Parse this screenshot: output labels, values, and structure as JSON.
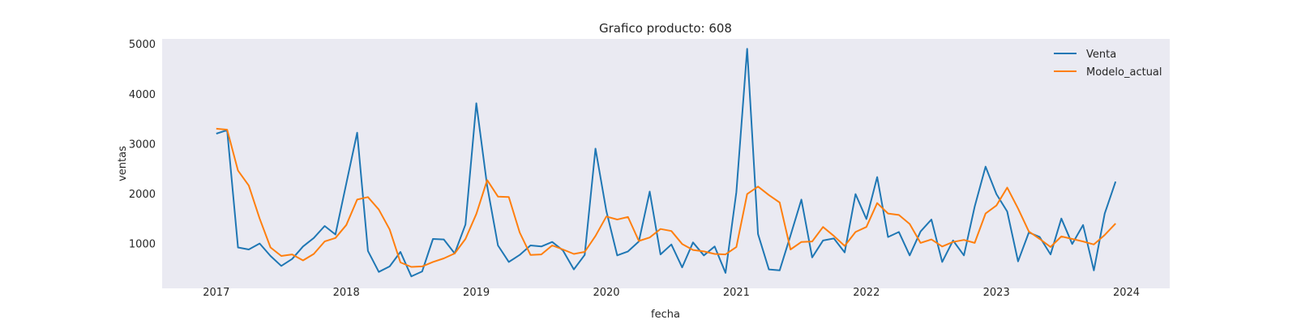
{
  "chart_data": {
    "type": "line",
    "title": "Grafico producto: 608",
    "xlabel": "fecha",
    "ylabel": "ventas",
    "x_start": "2017-01",
    "x_step": "month",
    "x_ticks": [
      "2017",
      "2018",
      "2019",
      "2020",
      "2021",
      "2022",
      "2023",
      "2024"
    ],
    "y_ticks": [
      "1000",
      "2000",
      "3000",
      "4000",
      "5000"
    ],
    "ylim": [
      100,
      5100
    ],
    "xlim": [
      "2016-08",
      "2024-05"
    ],
    "grid": false,
    "legend_position": "upper right",
    "series": [
      {
        "name": "Venta",
        "color": "#1f77b4",
        "values": [
          3200,
          3270,
          920,
          880,
          1000,
          750,
          550,
          690,
          940,
          1110,
          1350,
          1180,
          2200,
          3220,
          850,
          430,
          540,
          830,
          340,
          440,
          1090,
          1080,
          800,
          1380,
          3810,
          2150,
          960,
          630,
          770,
          960,
          940,
          1030,
          860,
          480,
          770,
          2900,
          1650,
          760,
          840,
          1040,
          2040,
          780,
          980,
          520,
          1020,
          760,
          940,
          410,
          2030,
          4900,
          1190,
          480,
          460,
          1160,
          1880,
          720,
          1060,
          1100,
          820,
          1990,
          1490,
          2330,
          1130,
          1230,
          760,
          1240,
          1480,
          630,
          1060,
          760,
          1740,
          2540,
          1990,
          1640,
          640,
          1220,
          1130,
          780,
          1500,
          990,
          1370,
          460,
          1600,
          2240
        ]
      },
      {
        "name": "Modelo_actual",
        "color": "#ff7f0e",
        "values": [
          3300,
          3280,
          2460,
          2160,
          1500,
          920,
          750,
          780,
          660,
          790,
          1040,
          1110,
          1370,
          1880,
          1930,
          1680,
          1280,
          620,
          530,
          540,
          630,
          700,
          800,
          1090,
          1590,
          2270,
          1940,
          1930,
          1220,
          770,
          780,
          960,
          880,
          790,
          830,
          1150,
          1540,
          1480,
          1530,
          1050,
          1120,
          1290,
          1250,
          990,
          870,
          840,
          790,
          780,
          930,
          1990,
          2140,
          1970,
          1820,
          880,
          1030,
          1040,
          1330,
          1150,
          950,
          1230,
          1330,
          1810,
          1600,
          1570,
          1390,
          1010,
          1080,
          940,
          1030,
          1070,
          1010,
          1600,
          1760,
          2120,
          1700,
          1240,
          1090,
          930,
          1140,
          1090,
          1040,
          980,
          1170,
          1400
        ]
      }
    ]
  }
}
